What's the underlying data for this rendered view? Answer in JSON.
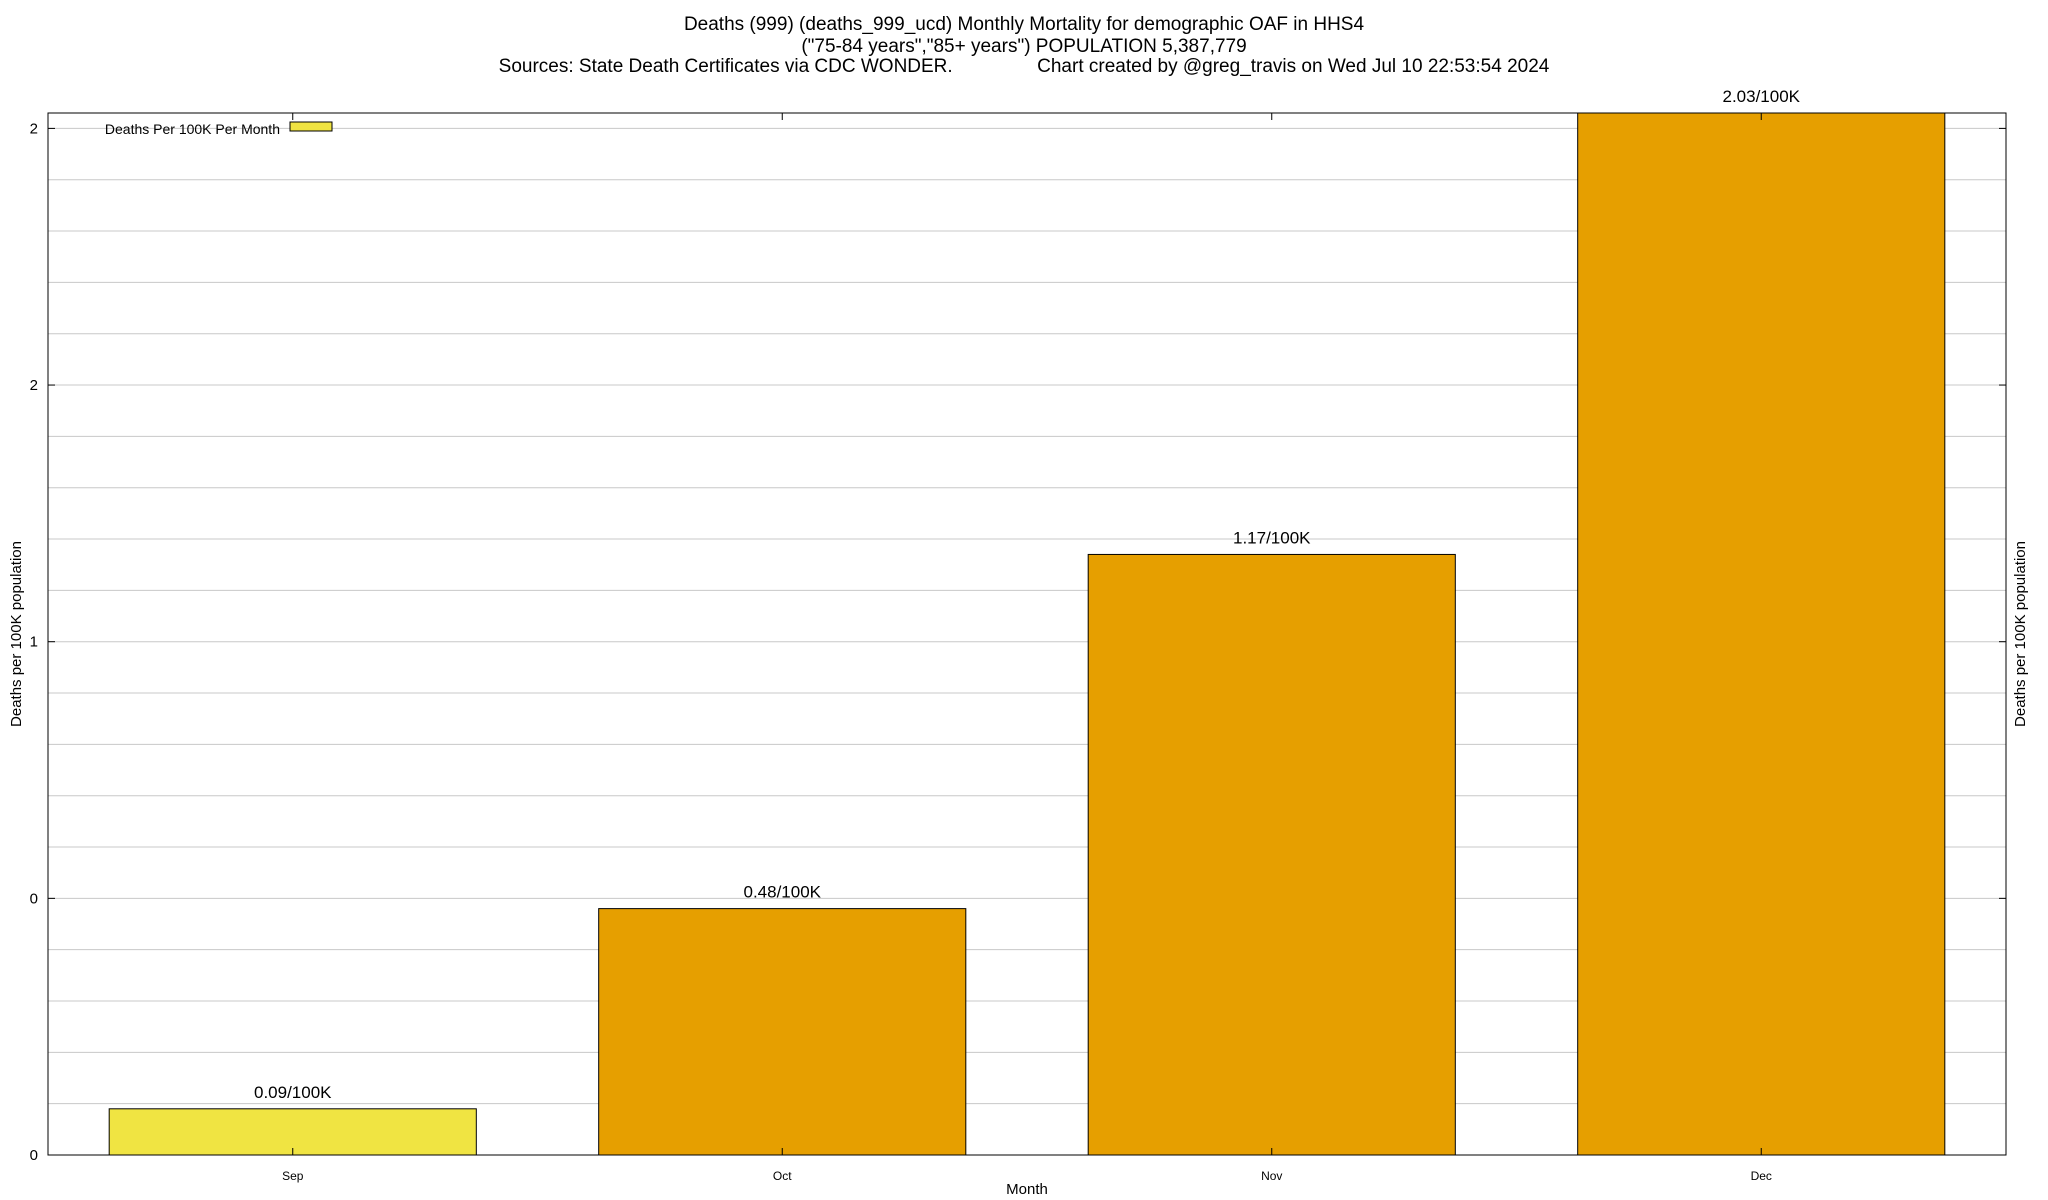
{
  "chart_data": {
    "type": "bar",
    "title_lines": [
      "Deaths (999) (deaths_999_ucd) Monthly Mortality for demographic OAF in HHS4",
      "(\"75-84 years\",\"85+ years\") POPULATION 5,387,779",
      "Sources: State Death Certificates via CDC WONDER.                Chart created by @greg_travis on Wed Jul 10 22:53:54 2024"
    ],
    "xlabel": "Month",
    "ylabel": "Deaths per 100K population",
    "ylabel_right": "Deaths per 100K population",
    "categories": [
      "Sep",
      "Oct",
      "Nov",
      "Dec"
    ],
    "values": [
      0.09,
      0.48,
      1.17,
      2.03
    ],
    "value_labels": [
      "0.09/100K",
      "0.48/100K",
      "1.17/100K",
      "2.03/100K"
    ],
    "ylim": [
      0,
      2.03
    ],
    "ytick_labels": [
      "0",
      "0",
      "1",
      "2",
      "2"
    ],
    "ytick_values": [
      0,
      0.5,
      1,
      1.5,
      2
    ],
    "legend": {
      "entries": [
        "Deaths Per 100K Per Month"
      ],
      "placement": "top-left"
    },
    "grid": true,
    "colors": {
      "first_bar": "#f0e442",
      "bars": "#e69f00",
      "outline": "#000000",
      "grid": "#c8c8c8"
    }
  }
}
